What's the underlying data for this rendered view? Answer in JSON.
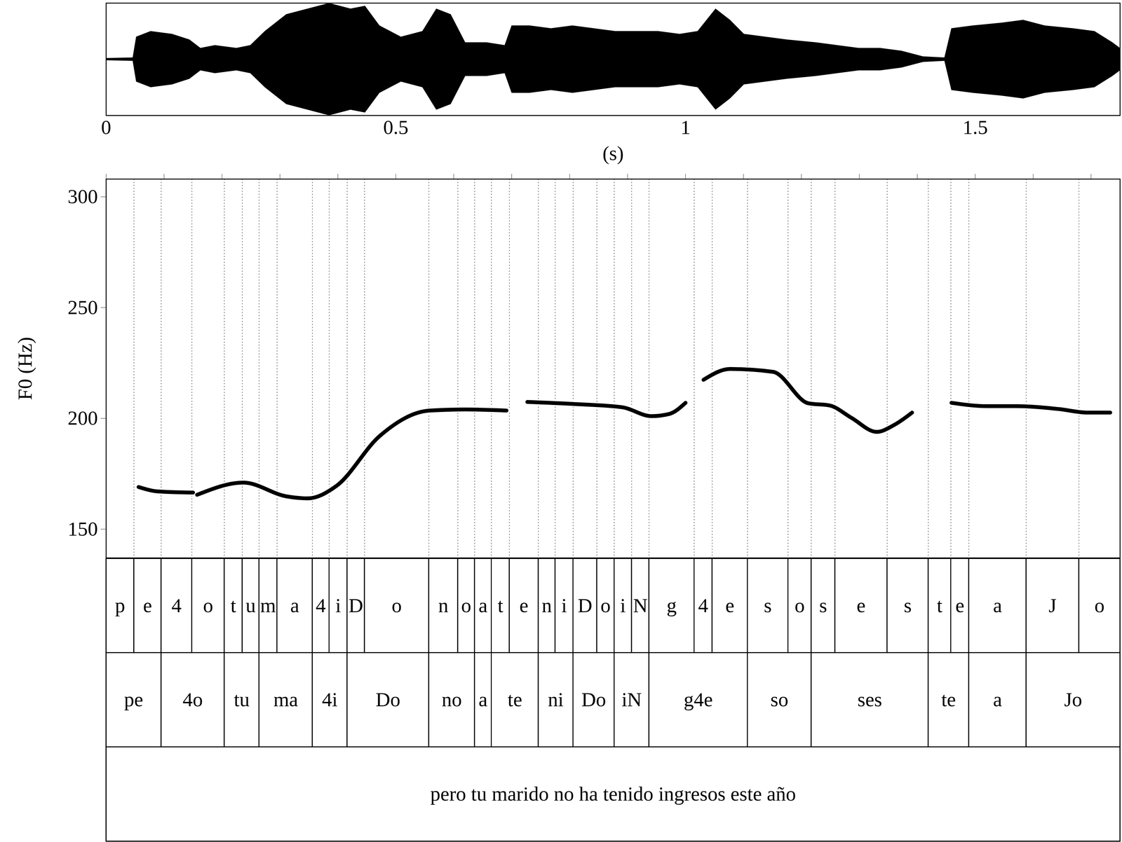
{
  "chart_data": [
    {
      "type": "area",
      "x": [
        0,
        0.046,
        0.052,
        0.077,
        0.114,
        0.144,
        0.163,
        0.188,
        0.225,
        0.249,
        0.274,
        0.311,
        0.348,
        0.385,
        0.422,
        0.447,
        0.472,
        0.509,
        0.546,
        0.57,
        0.595,
        0.62,
        0.657,
        0.688,
        0.7,
        0.731,
        0.768,
        0.805,
        0.842,
        0.879,
        0.916,
        0.953,
        0.99,
        1.021,
        1.052,
        1.077,
        1.101,
        1.138,
        1.175,
        1.225,
        1.262,
        1.299,
        1.336,
        1.373,
        1.41,
        1.447,
        1.459,
        1.496,
        1.546,
        1.583,
        1.62,
        1.669,
        1.706,
        1.737,
        1.75
      ],
      "values": [
        0.02,
        0.03,
        0.4,
        0.5,
        0.45,
        0.35,
        0.2,
        0.25,
        0.2,
        0.25,
        0.5,
        0.8,
        0.9,
        1.0,
        0.9,
        0.95,
        0.6,
        0.4,
        0.5,
        0.9,
        0.8,
        0.3,
        0.3,
        0.25,
        0.6,
        0.6,
        0.55,
        0.6,
        0.55,
        0.5,
        0.5,
        0.5,
        0.45,
        0.5,
        0.9,
        0.7,
        0.45,
        0.4,
        0.35,
        0.3,
        0.25,
        0.2,
        0.2,
        0.15,
        0.05,
        0.03,
        0.55,
        0.6,
        0.65,
        0.7,
        0.6,
        0.55,
        0.5,
        0.3,
        0.2
      ],
      "xlim": [
        0,
        1.75
      ],
      "xticks": [
        0,
        0.5,
        1,
        1.5
      ],
      "xlabel": "(s)",
      "ylim": [
        -1,
        1
      ],
      "color": "#000000",
      "tick_labels": "x"
    },
    {
      "type": "line",
      "x": [
        0.056,
        0.09,
        0.15,
        0.153,
        0.157,
        0.237,
        0.311,
        0.348,
        0.398,
        0.472,
        0.558,
        0.62,
        0.691,
        0.709,
        0.727,
        0.805,
        0.891,
        0.941,
        0.972,
        1.0,
        1.015,
        1.031,
        1.077,
        1.151,
        1.212,
        1.249,
        1.286,
        1.33,
        1.36,
        1.391,
        1.425,
        1.459,
        1.521,
        1.57,
        1.644,
        1.694,
        1.733
      ],
      "values": [
        169,
        167,
        166.5,
        null,
        165.5,
        171,
        164.8,
        163.9,
        169.6,
        192,
        203.5,
        204,
        203.5,
        null,
        207.4,
        206.5,
        205,
        201,
        202,
        207,
        null,
        217.4,
        222.3,
        221,
        206.8,
        205.8,
        200.3,
        193.9,
        197,
        202.6,
        null,
        207,
        205.5,
        205.5,
        204.2,
        202.6,
        202.6
      ],
      "xlim": [
        0,
        1.75
      ],
      "xticks": [
        0,
        0.1,
        0.2,
        0.3,
        0.4,
        0.5,
        0.6,
        0.7,
        0.8,
        0.9,
        1.0,
        1.1,
        1.2,
        1.3,
        1.4,
        1.5,
        1.6,
        1.7
      ],
      "ylim": [
        137,
        308
      ],
      "yticks": [
        150,
        200,
        250,
        300
      ],
      "ylabel": "F0 (Hz)",
      "color": "#000000",
      "tick_labels": "y"
    },
    {
      "type": "textgrid",
      "xlim": [
        0,
        1.75
      ],
      "tiers": [
        {
          "boundaries": [
            0,
            0.048,
            0.095,
            0.148,
            0.204,
            0.235,
            0.264,
            0.295,
            0.356,
            0.385,
            0.416,
            0.446,
            0.557,
            0.607,
            0.636,
            0.665,
            0.696,
            0.746,
            0.775,
            0.806,
            0.847,
            0.877,
            0.907,
            0.937,
            1.015,
            1.046,
            1.107,
            1.177,
            1.217,
            1.258,
            1.348,
            1.419,
            1.458,
            1.489,
            1.588,
            1.679,
            1.75
          ],
          "labels": [
            "p",
            "e",
            "4",
            "o",
            "t",
            "u",
            "m",
            "a",
            "4",
            "i",
            "D",
            "o",
            "n",
            "o",
            "a",
            "t",
            "e",
            "n",
            "i",
            "D",
            "o",
            "i",
            "N",
            "g",
            "4",
            "e",
            "s",
            "o",
            "s",
            "e",
            "s",
            "t",
            "e",
            "a",
            "J",
            "o"
          ]
        },
        {
          "boundaries": [
            0,
            0.095,
            0.204,
            0.264,
            0.356,
            0.416,
            0.557,
            0.636,
            0.665,
            0.746,
            0.806,
            0.877,
            0.937,
            1.107,
            1.217,
            1.419,
            1.489,
            1.588,
            1.75
          ],
          "labels": [
            "pe",
            "4o",
            "tu",
            "ma",
            "4i",
            "Do",
            "no",
            "a",
            "te",
            "ni",
            "Do",
            "iN",
            "g4e",
            "so",
            "ses",
            "te",
            "a",
            "Jo"
          ]
        },
        {
          "boundaries": [
            0,
            1.75
          ],
          "labels": [
            "pero tu marido no ha tenido ingresos este año"
          ]
        }
      ]
    }
  ]
}
